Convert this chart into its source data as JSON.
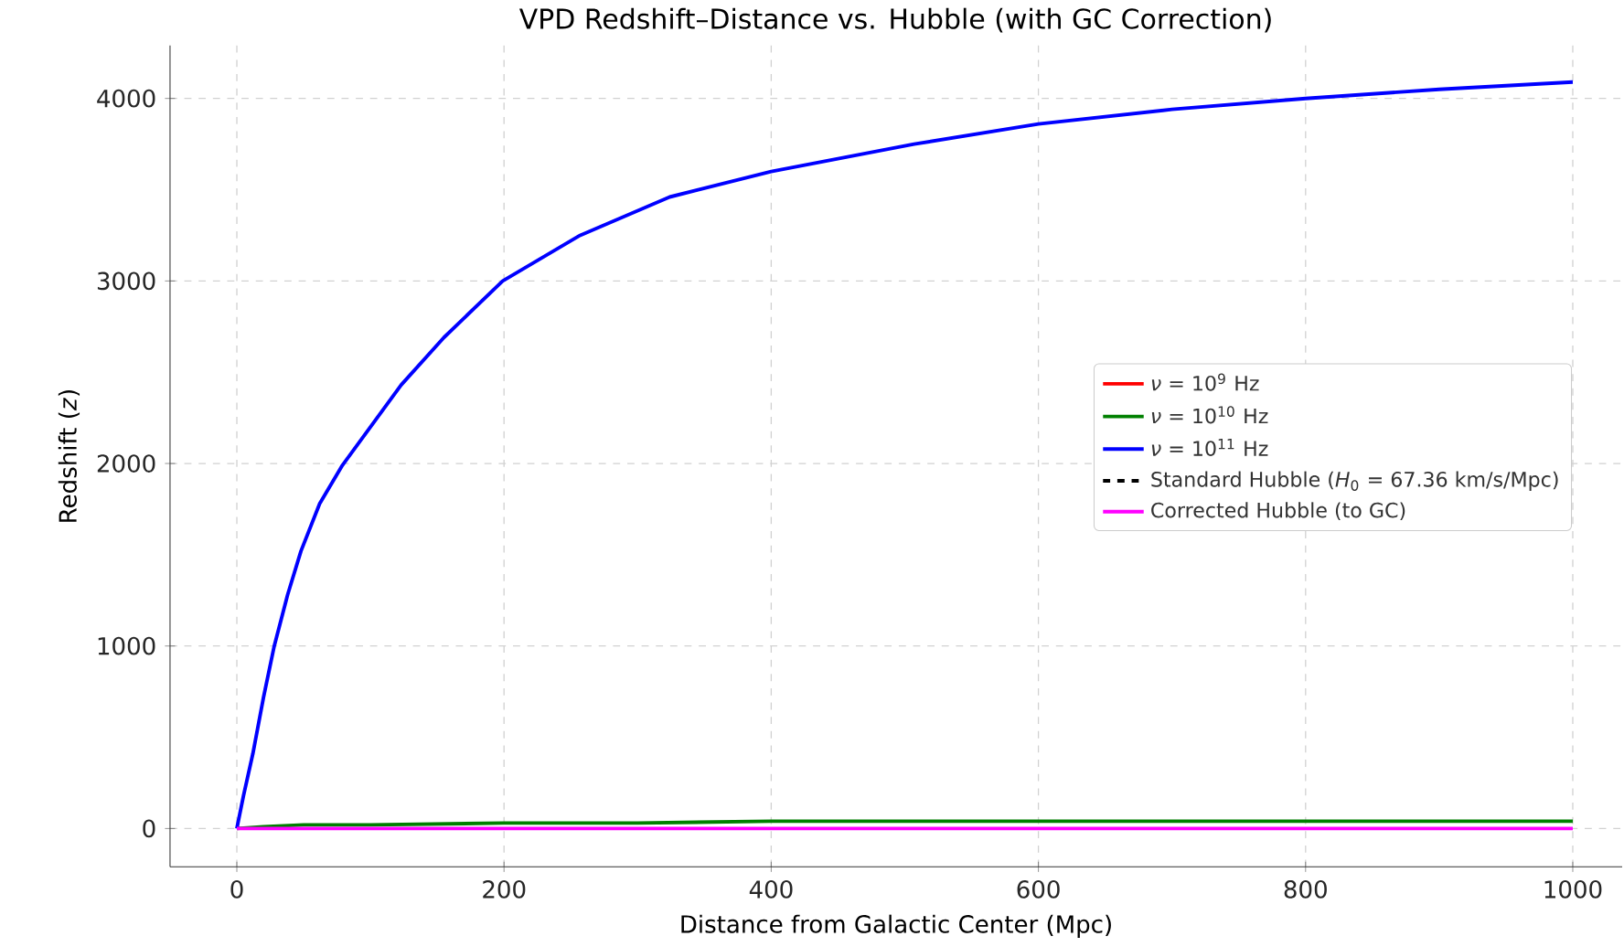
{
  "chart_data": {
    "type": "line",
    "title": "VPD Redshift–Distance vs. Hubble (with GC Correction)",
    "xlabel": "Distance from Galactic Center (Mpc)",
    "ylabel": "Redshift (*z*)",
    "xlim": [
      -50,
      1037
    ],
    "ylim": [
      -210,
      4290
    ],
    "xticks": [
      0,
      200,
      400,
      600,
      800,
      1000
    ],
    "yticks": [
      0,
      1000,
      2000,
      3000,
      4000
    ],
    "grid": true,
    "legend": "right",
    "line_style": "solid",
    "marker": "none",
    "series": [
      {
        "name": "*ν* = 10$^{9}$ Hz",
        "color": "#ff0000"
      },
      {
        "name": "*ν* = 10$^{10}$ Hz",
        "color": "#008000",
        "x": [
          0,
          20,
          50,
          100,
          200,
          300,
          400,
          600,
          800,
          1000
        ],
        "values": [
          0,
          10,
          20,
          20,
          30,
          30,
          40,
          40,
          40,
          40
        ]
      },
      {
        "name": "*ν* = 10$^{11}$ Hz",
        "color": "#0000ff",
        "x": [
          0,
          5,
          12,
          20,
          28,
          38,
          48,
          62,
          79,
          100,
          123,
          155,
          199,
          257,
          324,
          400,
          507,
          600,
          700,
          800,
          900,
          1000
        ],
        "values": [
          0,
          180,
          410,
          720,
          1000,
          1280,
          1520,
          1780,
          1990,
          2200,
          2430,
          2690,
          3000,
          3250,
          3460,
          3600,
          3750,
          3860,
          3940,
          4000,
          4050,
          4090
        ]
      },
      {
        "name": "Standard Hubble (*H*$_{0}$ = 67.36 km/s/Mpc)",
        "color": "#000000",
        "line_style": "dashed"
      },
      {
        "name": "Corrected Hubble (to GC)",
        "color": "#ff00ff",
        "x": [
          0,
          1000
        ],
        "values": [
          0,
          0
        ]
      }
    ]
  }
}
